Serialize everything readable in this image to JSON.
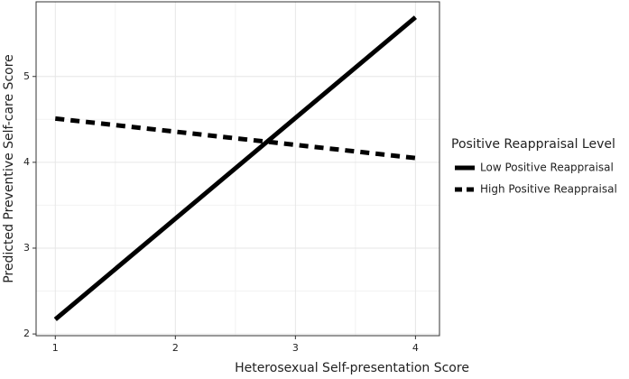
{
  "chart_data": {
    "type": "line",
    "x_label": "Heterosexual Self-presentation Score",
    "y_label": "Predicted Preventive Self-care Score",
    "x": [
      1,
      4
    ],
    "series": [
      {
        "name": "Low Positive Reappraisal",
        "color": "#000000",
        "dashed": false,
        "values": [
          2.17,
          5.69
        ]
      },
      {
        "name": "High Positive Reappraisal",
        "color": "#000000",
        "dashed": true,
        "values": [
          4.51,
          4.05
        ]
      }
    ],
    "xlim": [
      0.84,
      4.2
    ],
    "xticks": [
      1,
      2,
      3,
      4
    ],
    "ylim": [
      1.98,
      5.87
    ],
    "yticks": [
      2,
      3,
      4,
      5
    ],
    "grid": true,
    "legend_title": "Positive Reappraisal Level",
    "legend_position": "right"
  }
}
